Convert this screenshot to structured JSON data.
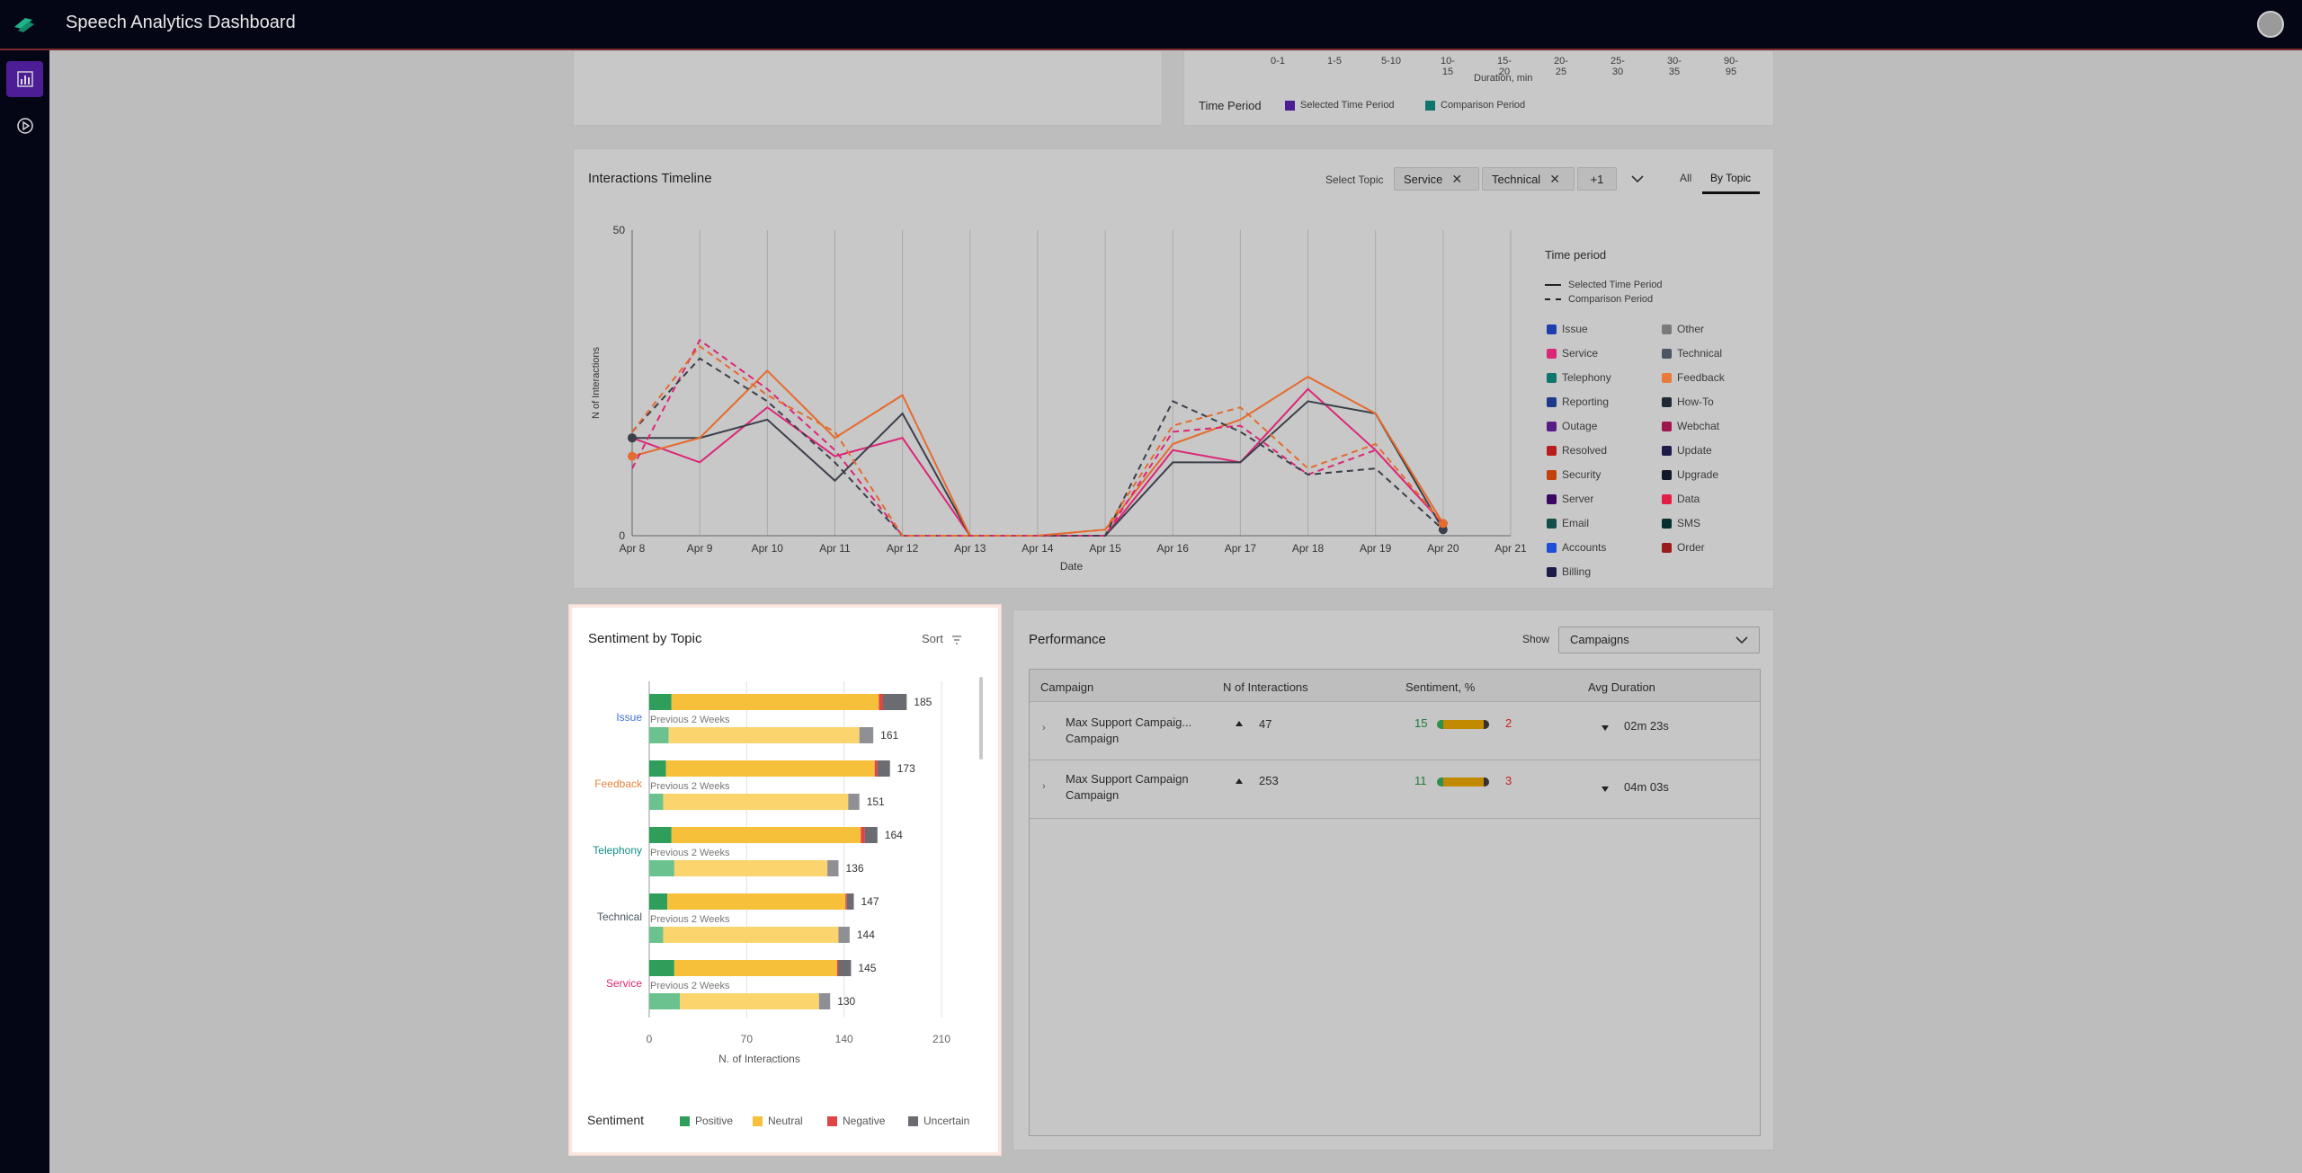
{
  "app": {
    "title": "Speech Analytics Dashboard"
  },
  "duration_chart": {
    "xlabel": "Duration, min",
    "ticks": [
      "0-1",
      "1-5",
      "5-10",
      "10-15",
      "15-20",
      "20-25",
      "25-30",
      "30-35",
      "90-95"
    ],
    "legend_title": "Time Period",
    "legend": [
      {
        "name": "Selected Time Period",
        "color": "#4c1d95"
      },
      {
        "name": "Comparison Period",
        "color": "#0f766e"
      }
    ]
  },
  "timeline": {
    "title": "Interactions Timeline",
    "select_topic_label": "Select Topic",
    "chips": [
      "Service",
      "Technical",
      "+1"
    ],
    "tabs": [
      "All",
      "By Topic"
    ],
    "active_tab": "By Topic",
    "legend_title": "Time period",
    "line_legend": [
      "Selected Time Period",
      "Comparison Period"
    ],
    "topic_legend": [
      {
        "name": "Issue",
        "color": "#1e40af"
      },
      {
        "name": "Other",
        "color": "#7a7a7a"
      },
      {
        "name": "Service",
        "color": "#db2777"
      },
      {
        "name": "Technical",
        "color": "#4b5563"
      },
      {
        "name": "Telephony",
        "color": "#0f766e"
      },
      {
        "name": "Feedback",
        "color": "#ea7a3b"
      },
      {
        "name": "Reporting",
        "color": "#1e3a8a"
      },
      {
        "name": "How-To",
        "color": "#1f2937"
      },
      {
        "name": "Outage",
        "color": "#581c87"
      },
      {
        "name": "Webchat",
        "color": "#9d174d"
      },
      {
        "name": "Resolved",
        "color": "#b91c1c"
      },
      {
        "name": "Update",
        "color": "#1e1b4b"
      },
      {
        "name": "Security",
        "color": "#c2410c"
      },
      {
        "name": "Upgrade",
        "color": "#111827"
      },
      {
        "name": "Server",
        "color": "#3b0764"
      },
      {
        "name": "Data",
        "color": "#e11d48"
      },
      {
        "name": "Email",
        "color": "#134e4a"
      },
      {
        "name": "SMS",
        "color": "#042f2e"
      },
      {
        "name": "Accounts",
        "color": "#1d4ed8"
      },
      {
        "name": "Order",
        "color": "#991b1b"
      },
      {
        "name": "Billing",
        "color": "#1e1b4b"
      }
    ]
  },
  "chart_data": [
    {
      "type": "line",
      "title": "Interactions Timeline",
      "xlabel": "Date",
      "ylabel": "N of Interactions",
      "ylim": [
        0,
        50
      ],
      "yticks": [
        "0",
        "50"
      ],
      "categories": [
        "Apr 8",
        "Apr 9",
        "Apr 10",
        "Apr 11",
        "Apr 12",
        "Apr 13",
        "Apr 14",
        "Apr 15",
        "Apr 16",
        "Apr 17",
        "Apr 18",
        "Apr 19",
        "Apr 20",
        "Apr 21"
      ],
      "series": [
        {
          "name": "Service",
          "period": "Selected Time Period",
          "color": "#db2777",
          "dashed": false,
          "values": [
            16,
            12,
            21,
            13,
            16,
            0,
            0,
            0,
            14,
            12,
            24,
            14,
            2,
            null
          ]
        },
        {
          "name": "Technical",
          "period": "Selected Time Period",
          "color": "#3b3f4a",
          "dashed": false,
          "values": [
            16,
            16,
            19,
            9,
            20,
            0,
            0,
            0,
            12,
            12,
            22,
            20,
            1,
            null
          ]
        },
        {
          "name": "Feedback",
          "period": "Selected Time Period",
          "color": "#e56b2e",
          "dashed": false,
          "values": [
            13,
            16,
            27,
            16,
            23,
            0,
            0,
            1,
            15,
            19,
            26,
            20,
            2,
            null
          ]
        },
        {
          "name": "Service",
          "period": "Comparison Period",
          "color": "#db2777",
          "dashed": true,
          "values": [
            11,
            32,
            24,
            14,
            0,
            0,
            0,
            0,
            17,
            18,
            10,
            14,
            2,
            null
          ]
        },
        {
          "name": "Technical",
          "period": "Comparison Period",
          "color": "#3b3f4a",
          "dashed": true,
          "values": [
            17,
            29,
            22,
            12,
            0,
            0,
            0,
            0,
            22,
            17,
            10,
            11,
            1,
            null
          ]
        },
        {
          "name": "Feedback",
          "period": "Comparison Period",
          "color": "#e56b2e",
          "dashed": true,
          "values": [
            17,
            31,
            23,
            17,
            0,
            0,
            0,
            1,
            18,
            21,
            11,
            15,
            2,
            null
          ]
        }
      ]
    },
    {
      "type": "bar",
      "orientation": "horizontal",
      "stacked": true,
      "title": "Sentiment by Topic",
      "xlabel": "N. of Interactions",
      "xlim": [
        0,
        210
      ],
      "xticks": [
        "0",
        "70",
        "140",
        "210"
      ],
      "categories": [
        "Issue",
        "Feedback",
        "Telephony",
        "Technical",
        "Service"
      ],
      "category_colors": [
        "#3b6fd8",
        "#e8843f",
        "#0f8f86",
        "#4b5563",
        "#db2777"
      ],
      "comparison_label": "Previous 2 Weeks",
      "sentiment_legend_title": "Sentiment",
      "series": [
        {
          "name": "Positive",
          "color": "#2f9e5b",
          "current": [
            16,
            12,
            16,
            13,
            18
          ],
          "previous": [
            14,
            10,
            18,
            10,
            22
          ]
        },
        {
          "name": "Neutral",
          "color": "#f7c03a",
          "current": [
            149,
            150,
            136,
            128,
            117
          ],
          "previous": [
            137,
            133,
            110,
            126,
            100
          ]
        },
        {
          "name": "Negative",
          "color": "#e04444",
          "current": [
            3,
            2,
            3,
            1,
            1
          ],
          "previous": [
            0,
            0,
            0,
            0,
            0
          ]
        },
        {
          "name": "Uncertain",
          "color": "#6b6b72",
          "current": [
            17,
            9,
            9,
            5,
            9
          ],
          "previous": [
            10,
            8,
            8,
            8,
            8
          ]
        }
      ],
      "current_totals": [
        185,
        173,
        164,
        147,
        145
      ],
      "previous_totals": [
        161,
        151,
        136,
        144,
        130
      ]
    },
    {
      "type": "bar",
      "title": "",
      "xlabel": "Duration, min",
      "categories": [
        "0-1",
        "1-5",
        "5-10",
        "10-15",
        "15-20",
        "20-25",
        "25-30",
        "30-35",
        "90-95"
      ]
    }
  ],
  "sentiment": {
    "title": "Sentiment by Topic",
    "sort_label": "Sort"
  },
  "performance": {
    "title": "Performance",
    "show_label": "Show",
    "show_value": "Campaigns",
    "columns": [
      "Campaign",
      "N of Interactions",
      "Sentiment, %",
      "Avg Duration"
    ],
    "rows": [
      {
        "name": "Max Support Campaig...",
        "type": "Campaign",
        "interactions": "47",
        "positive": "15",
        "negative": "2",
        "duration": "02m 23s"
      },
      {
        "name": "Max Support Campaign",
        "type": "Campaign",
        "interactions": "253",
        "positive": "11",
        "negative": "3",
        "duration": "04m 03s"
      }
    ]
  }
}
